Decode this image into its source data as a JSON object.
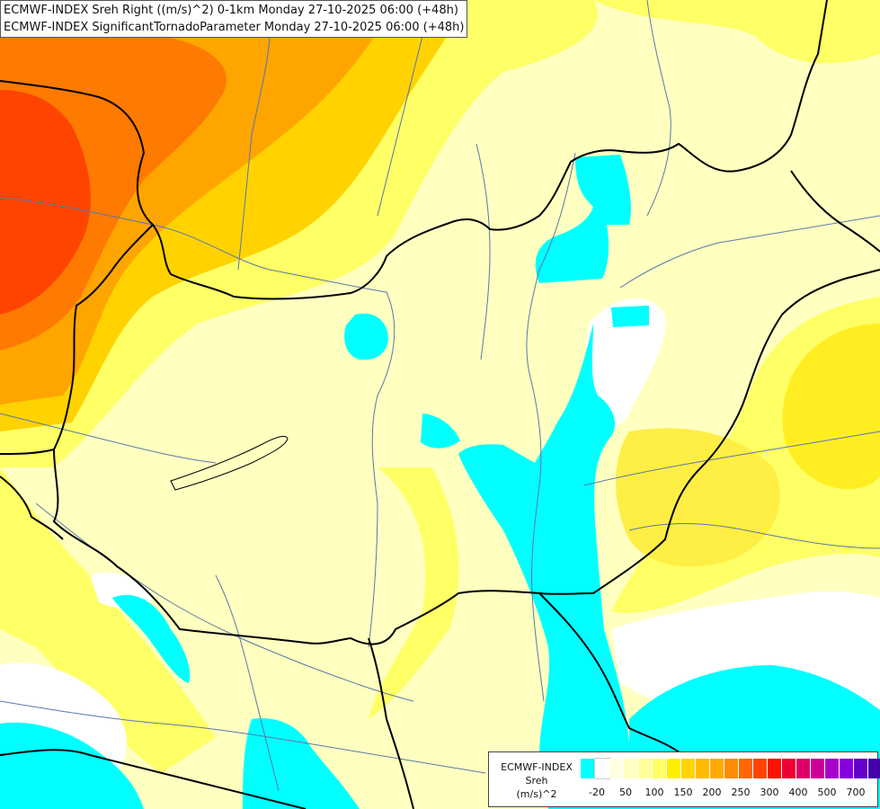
{
  "header": {
    "line1": "ECMWF-INDEX Sreh Right ((m/s)^2) 0-1km Monday 27-10-2025 06:00 (+48h)",
    "line2": "ECMWF-INDEX SignificantTornadoParameter Monday 27-10-2025 06:00 (+48h)"
  },
  "legend": {
    "line1": "ECMWF-INDEX",
    "line2": "Sreh",
    "line3": "(m/s)^2",
    "colors": [
      "#00ffff",
      "#ffffff",
      "#ffffe0",
      "#ffffc0",
      "#ffff99",
      "#ffff66",
      "#ffee00",
      "#ffd400",
      "#ffbb00",
      "#ffaa00",
      "#ff8c00",
      "#ff6600",
      "#ff4400",
      "#ff1100",
      "#ee0033",
      "#dd0066",
      "#cc0099",
      "#aa00cc",
      "#8800dd",
      "#6600cc",
      "#4400aa",
      "#1a0077"
    ],
    "ticks": [
      "-20",
      "50",
      "100",
      "150",
      "200",
      "250",
      "300",
      "400",
      "500",
      "700"
    ]
  },
  "palette": {
    "cyan": "#00ffff",
    "pale": "#ffffc0",
    "yellow": "#ffff66",
    "gold": "#ffd200",
    "orange": "#ffa500",
    "red": "#ff4400",
    "border": "#000000",
    "river": "#5a78a8"
  }
}
